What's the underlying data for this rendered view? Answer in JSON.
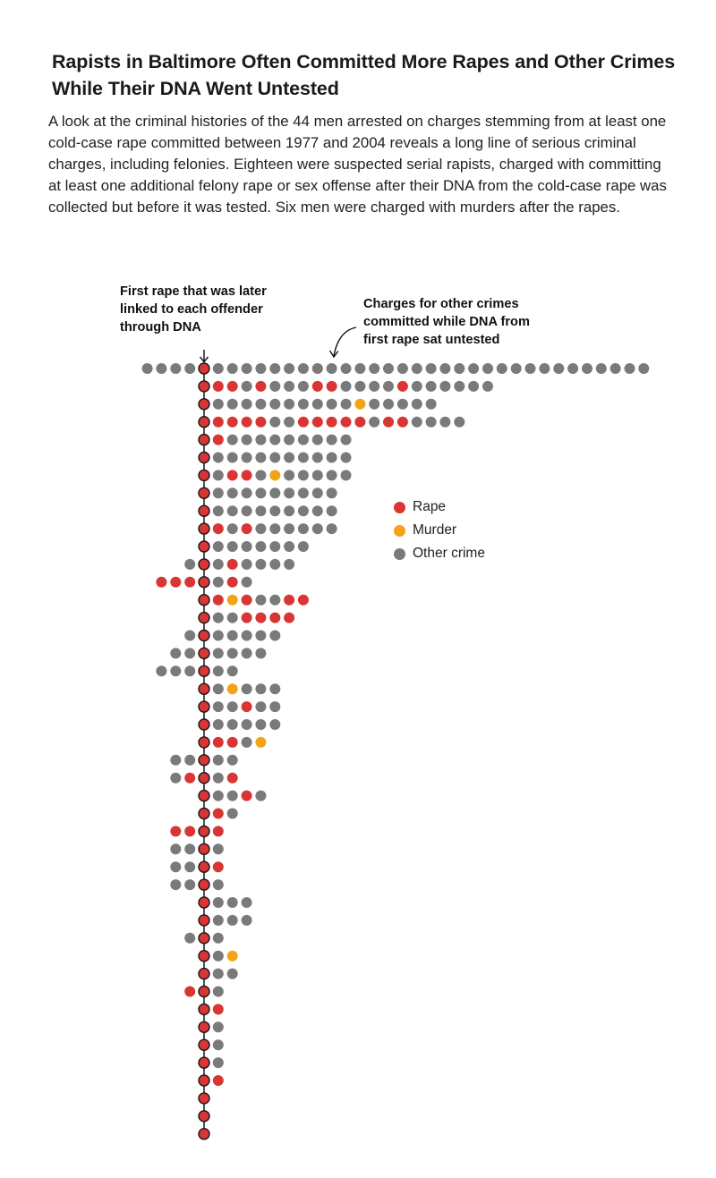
{
  "title": "Rapists in Baltimore Often Committed More Rapes and Other Crimes While Their DNA Went Untested",
  "intro": "A look at the criminal histories of the 44 men arrested on charges stemming from at least one cold-case rape committed between 1977 and 2004 reveals a long line of serious criminal charges, including felonies. Eighteen were suspected serial rapists, charged with committing at least one additional felony rape or sex offense after their DNA from the cold-case rape was collected but before it was tested. Six men were charged with murders after the rapes.",
  "annotations": {
    "first_rape": "First rape that was later\nlinked to each offender\nthrough DNA",
    "other_crimes": "Charges for other crimes\ncommitted while DNA from\nfirst rape sat untested"
  },
  "legend": [
    {
      "label": "Rape",
      "color": "#d93535"
    },
    {
      "label": "Murder",
      "color": "#f5a316"
    },
    {
      "label": "Other crime",
      "color": "#7a7a7a"
    }
  ],
  "chart_data": {
    "type": "dot-timeline",
    "unit": "one dot per criminal charge; each row is one offender",
    "categories": [
      "Rape",
      "Murder",
      "Other crime"
    ],
    "colors": {
      "R": "#d93535",
      "M": "#f5a316",
      "O": "#7a7a7a"
    },
    "rows": [
      {
        "before": "OOOO",
        "after": "OOOOOOOOOOOOOOOOOOOOOOOOOOOOOOO"
      },
      {
        "before": "",
        "after": "RROROOORROOOOROOOOOO"
      },
      {
        "before": "",
        "after": "OOOOOOOOOOMOOOOO"
      },
      {
        "before": "",
        "after": "RRRROORRRRRORROOOO"
      },
      {
        "before": "",
        "after": "ROOOOOOOOO"
      },
      {
        "before": "",
        "after": "OOOOOOOOOO"
      },
      {
        "before": "",
        "after": "ORROMOOOOO"
      },
      {
        "before": "",
        "after": "OOOOOOOOO"
      },
      {
        "before": "",
        "after": "OOOOOOOOO"
      },
      {
        "before": "",
        "after": "ROROOOOOO"
      },
      {
        "before": "",
        "after": "OOOOOOO"
      },
      {
        "before": "O",
        "after": "OROOOO"
      },
      {
        "before": "RRR",
        "after": "ORO"
      },
      {
        "before": "",
        "after": "RMROORR"
      },
      {
        "before": "",
        "after": "OORRRR"
      },
      {
        "before": "O",
        "after": "OOOOO"
      },
      {
        "before": "OO",
        "after": "OOOO"
      },
      {
        "before": "OOO",
        "after": "OO"
      },
      {
        "before": "",
        "after": "OMOOO"
      },
      {
        "before": "",
        "after": "OOROO"
      },
      {
        "before": "",
        "after": "OOOOO"
      },
      {
        "before": "",
        "after": "RROM"
      },
      {
        "before": "OO",
        "after": "OO"
      },
      {
        "before": "OR",
        "after": "OR"
      },
      {
        "before": "",
        "after": "OORO"
      },
      {
        "before": "",
        "after": "RO"
      },
      {
        "before": "RR",
        "after": "R"
      },
      {
        "before": "OO",
        "after": "O"
      },
      {
        "before": "OO",
        "after": "R"
      },
      {
        "before": "OO",
        "after": "O"
      },
      {
        "before": "",
        "after": "OOO"
      },
      {
        "before": "",
        "after": "OOO"
      },
      {
        "before": "O",
        "after": "O"
      },
      {
        "before": "",
        "after": "OM"
      },
      {
        "before": "",
        "after": "OO"
      },
      {
        "before": "R",
        "after": "O"
      },
      {
        "before": "",
        "after": "R"
      },
      {
        "before": "",
        "after": "O"
      },
      {
        "before": "",
        "after": "O"
      },
      {
        "before": "",
        "after": "O"
      },
      {
        "before": "",
        "after": "R"
      },
      {
        "before": "",
        "after": ""
      },
      {
        "before": "",
        "after": ""
      },
      {
        "before": "",
        "after": ""
      }
    ]
  }
}
